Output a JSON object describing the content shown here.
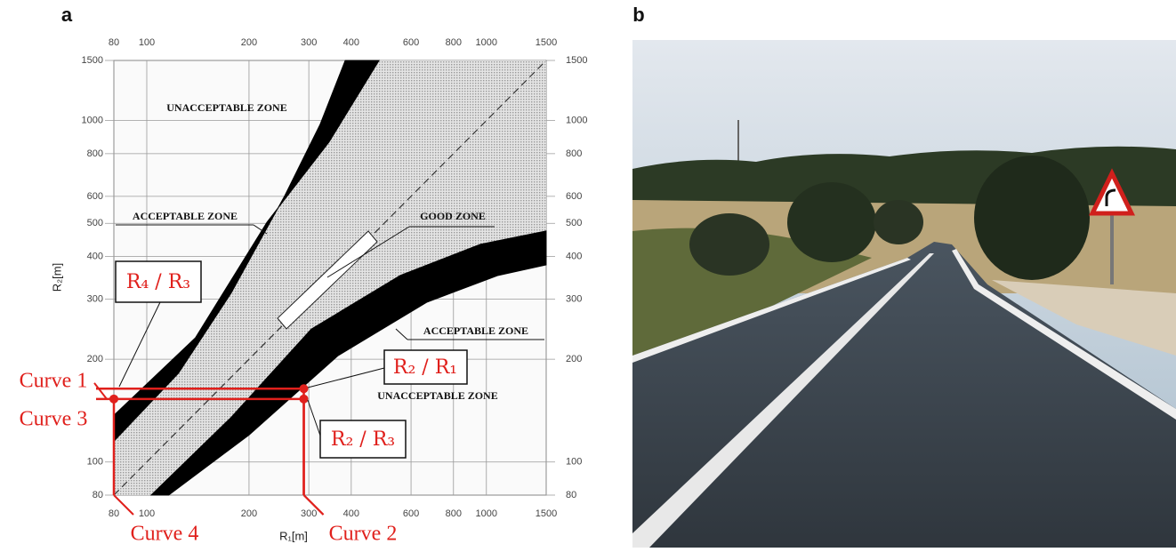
{
  "panel_a_label": "a",
  "panel_b_label": "b",
  "chart_data": {
    "type": "line",
    "xlabel": "R₁[m]",
    "ylabel": "R₂[m]",
    "xlim": [
      80,
      1500
    ],
    "ylim": [
      80,
      1500
    ],
    "xticks": [
      80,
      100,
      200,
      300,
      400,
      600,
      800,
      1000,
      1500
    ],
    "yticks": [
      80,
      100,
      200,
      300,
      400,
      500,
      600,
      800,
      1000,
      1500
    ],
    "log_x": true,
    "log_y": true,
    "grid": true,
    "bands": [
      {
        "color": "#000000",
        "edge_a": {
          "x": [
            80,
            124,
            177,
            255,
            324,
            384
          ],
          "y": [
            115,
            182,
            312,
            603,
            975,
            1500
          ]
        },
        "edge_b": {
          "x": [
            80,
            139,
            226,
            344,
            483
          ],
          "y": [
            137,
            231,
            504,
            865,
            1500
          ]
        }
      },
      {
        "color": "#000000",
        "edge_a": {
          "x": [
            103,
            177,
            305,
            558,
            960,
            1500
          ],
          "y": [
            80,
            135,
            245,
            352,
            434,
            475
          ]
        },
        "edge_b": {
          "x": [
            116,
            200,
            366,
            669,
            1083,
            1500
          ],
          "y": [
            80,
            120,
            205,
            294,
            352,
            378
          ]
        }
      }
    ],
    "reference_line": {
      "x": [
        80,
        1500
      ],
      "y": [
        80,
        1500
      ]
    },
    "points": {
      "color": "#e0201c",
      "x": [
        80,
        290,
        290
      ],
      "y": [
        153,
        164,
        153
      ]
    },
    "annotations": [
      "UNACCEPTABLE ZONE",
      "ACCEPTABLE ZONE",
      "GOOD ZONE",
      "ACCEPTABLE ZONE",
      "UNACCEPTABLE ZONE",
      "R₄ / R₃",
      "R₂ / R₁",
      "R₂ / R₃",
      "Curve 1",
      "Curve 3",
      "Curve 4",
      "Curve 2"
    ]
  }
}
